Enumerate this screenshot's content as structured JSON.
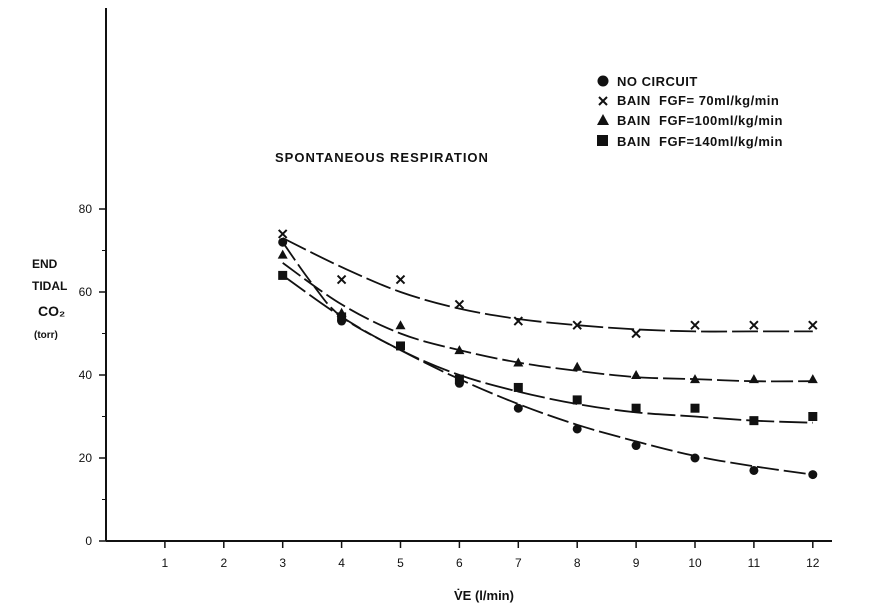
{
  "chart_data": {
    "type": "line",
    "title": "",
    "annotation": "SPONTANEOUS RESPIRATION",
    "xlabel": "V̇E (l/min)",
    "ylabel_lines": [
      "END",
      "TIDAL",
      "CO₂",
      "(torr)"
    ],
    "xlim": [
      0,
      12.4
    ],
    "ylim": [
      0,
      80
    ],
    "x_ticks": [
      1,
      2,
      3,
      4,
      5,
      6,
      7,
      8,
      9,
      10,
      11,
      12
    ],
    "y_ticks": [
      0,
      20,
      40,
      60,
      80
    ],
    "grid": false,
    "legend_position": "top-right",
    "series": [
      {
        "name": "NO CIRCUIT",
        "marker": "circle",
        "x": [
          3,
          4,
          5,
          6,
          7,
          8,
          9,
          10,
          11,
          12
        ],
        "y": [
          72,
          53,
          47,
          38,
          32,
          27,
          23,
          20,
          17,
          16
        ],
        "curve": [
          [
            3,
            72
          ],
          [
            3.5,
            62
          ],
          [
            4,
            54
          ],
          [
            5,
            46
          ],
          [
            6,
            39
          ],
          [
            7,
            33
          ],
          [
            8,
            28
          ],
          [
            9,
            24
          ],
          [
            10,
            20.5
          ],
          [
            11,
            18
          ],
          [
            12,
            16
          ]
        ]
      },
      {
        "name": "BAIN  FGF= 70ml/kg/min",
        "marker": "cross",
        "x": [
          3,
          4,
          5,
          6,
          7,
          8,
          9,
          10,
          11,
          12
        ],
        "y": [
          74,
          63,
          63,
          57,
          53,
          52,
          50,
          52,
          52,
          52
        ],
        "curve": [
          [
            3,
            73
          ],
          [
            4,
            66
          ],
          [
            5,
            60
          ],
          [
            6,
            56
          ],
          [
            7,
            53.5
          ],
          [
            8,
            52
          ],
          [
            9,
            51
          ],
          [
            10,
            50.5
          ],
          [
            11,
            50.5
          ],
          [
            12,
            50.5
          ]
        ]
      },
      {
        "name": "BAIN  FGF=100ml/kg/min",
        "marker": "triangle",
        "x": [
          3,
          4,
          5,
          6,
          7,
          8,
          9,
          10,
          11,
          12
        ],
        "y": [
          69,
          55,
          52,
          46,
          43,
          42,
          40,
          39,
          39,
          39
        ],
        "curve": [
          [
            3,
            67
          ],
          [
            4,
            57
          ],
          [
            5,
            50
          ],
          [
            6,
            46
          ],
          [
            7,
            43
          ],
          [
            8,
            41
          ],
          [
            9,
            39.5
          ],
          [
            10,
            39
          ],
          [
            11,
            38.5
          ],
          [
            12,
            38.5
          ]
        ]
      },
      {
        "name": "BAIN  FGF=140ml/kg/min",
        "marker": "square",
        "x": [
          3,
          4,
          5,
          6,
          7,
          8,
          9,
          10,
          11,
          12
        ],
        "y": [
          64,
          54,
          47,
          39,
          37,
          34,
          32,
          32,
          29,
          30
        ],
        "curve": [
          [
            3,
            64
          ],
          [
            4,
            54
          ],
          [
            5,
            46
          ],
          [
            6,
            40
          ],
          [
            7,
            36
          ],
          [
            8,
            33
          ],
          [
            9,
            31
          ],
          [
            10,
            30
          ],
          [
            11,
            29
          ],
          [
            12,
            28.5
          ]
        ]
      }
    ]
  }
}
